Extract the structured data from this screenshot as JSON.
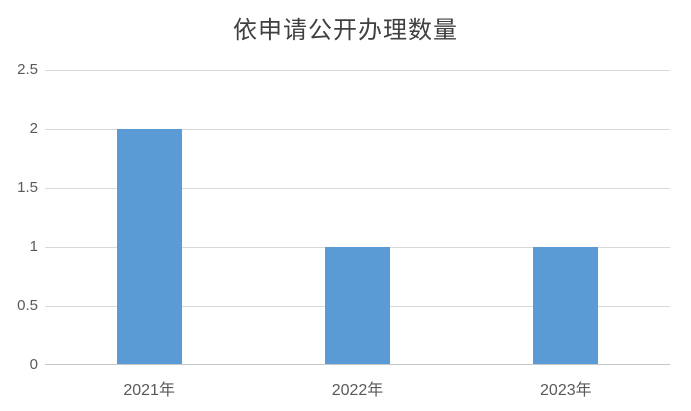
{
  "chart": {
    "colors": {
      "bar": "#5B9BD5",
      "gridline": "#D9D9D9",
      "axis_line": "#C6C6C6",
      "tick_label": "#595959",
      "title": "#404040",
      "background": "#FFFFFF"
    }
  },
  "chart_data": {
    "type": "bar",
    "title": "依申请公开办理数量",
    "categories": [
      "2021年",
      "2022年",
      "2023年"
    ],
    "values": [
      2,
      1,
      1
    ],
    "xlabel": "",
    "ylabel": "",
    "ylim": [
      0,
      2.5
    ],
    "yticks": [
      "0",
      "0.5",
      "1",
      "1.5",
      "2",
      "2.5"
    ],
    "grid": true,
    "legend": false
  }
}
